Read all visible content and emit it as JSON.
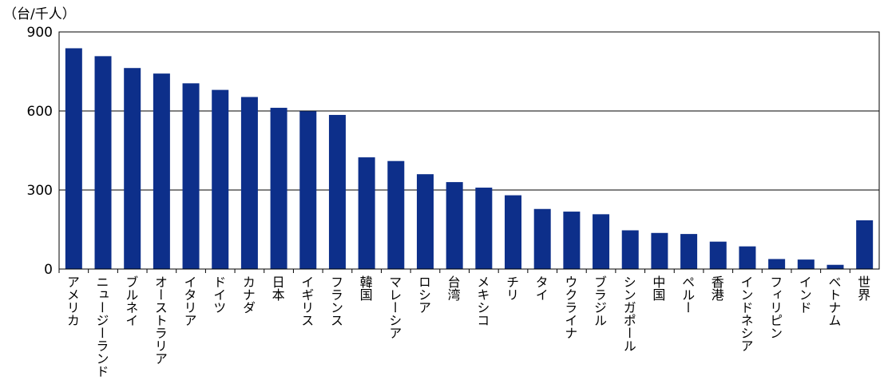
{
  "chart_data": {
    "type": "bar",
    "ylabel": "（台/千人）",
    "ylim": [
      0,
      900
    ],
    "yticks": [
      0,
      300,
      600,
      900
    ],
    "grid": true,
    "bar_color": "#0d2f8a",
    "categories": [
      "アメリカ",
      "ニュージーランド",
      "ブルネイ",
      "オーストラリア",
      "イタリア",
      "ドイツ",
      "カナダ",
      "日本",
      "イギリス",
      "フランス",
      "韓国",
      "マレーシア",
      "ロシア",
      "台湾",
      "メキシコ",
      "チリ",
      "タイ",
      "ウクライナ",
      "ブラジル",
      "シンガポール",
      "中国",
      "ペルー",
      "香港",
      "インドネシア",
      "フィリピン",
      "インド",
      "ベトナム",
      "世界"
    ],
    "values": [
      838,
      808,
      763,
      742,
      705,
      680,
      653,
      612,
      599,
      585,
      424,
      410,
      360,
      330,
      309,
      280,
      228,
      218,
      208,
      147,
      137,
      133,
      104,
      86,
      38,
      36,
      16,
      185
    ]
  }
}
